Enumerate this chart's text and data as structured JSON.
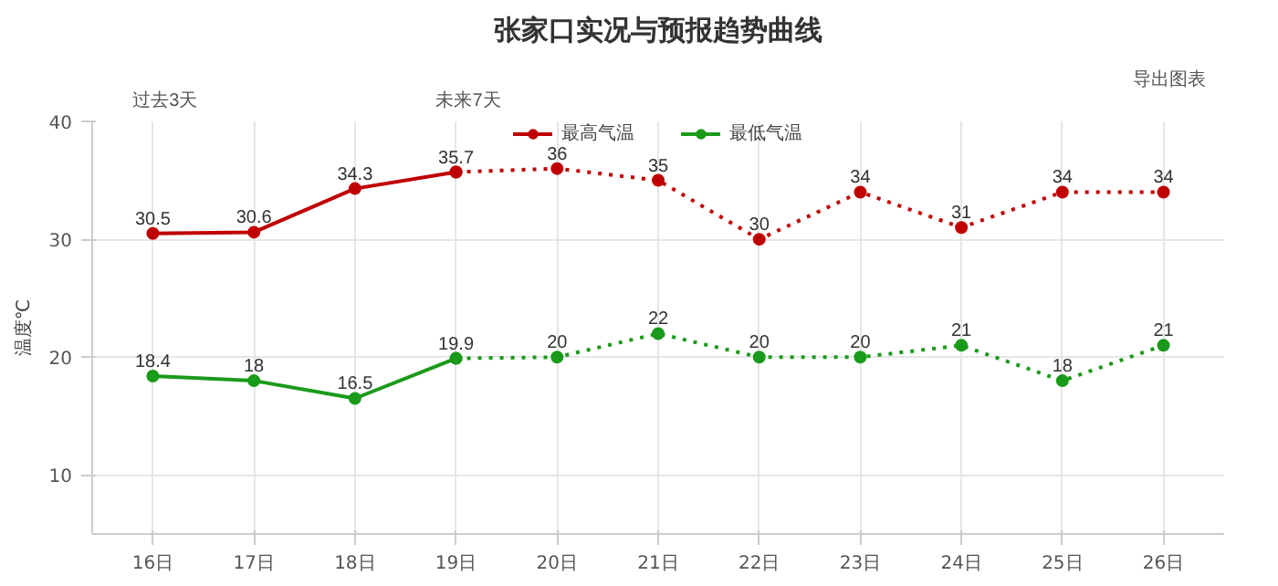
{
  "chart_data": {
    "type": "line",
    "title": "张家口实况与预报趋势曲线",
    "ylabel": "温度℃",
    "categories": [
      "16日",
      "17日",
      "18日",
      "19日",
      "20日",
      "21日",
      "22日",
      "23日",
      "24日",
      "25日",
      "26日"
    ],
    "series": [
      {
        "name": "最高气温",
        "color": "#c00000",
        "line_style": "solid",
        "values": [
          30.5,
          30.6,
          34.3,
          35.7,
          null,
          null,
          null,
          null,
          null,
          null,
          null
        ],
        "data_labels": true
      },
      {
        "color": "#c00000",
        "line_style": "dotted",
        "values": [
          null,
          null,
          null,
          35.7,
          36,
          35,
          30,
          34,
          31,
          34,
          34
        ],
        "value_labels": [
          null,
          null,
          null,
          null,
          "36",
          "35",
          "30",
          "34",
          "31",
          "34",
          "34"
        ]
      },
      {
        "name": "最低气温",
        "color": "#1a9a1a",
        "line_style": "solid",
        "values": [
          18.4,
          18,
          16.5,
          19.9,
          null,
          null,
          null,
          null,
          null,
          null,
          null
        ],
        "data_labels": true
      },
      {
        "color": "#1a9a1a",
        "line_style": "dotted",
        "values": [
          null,
          null,
          null,
          19.9,
          20,
          22,
          20,
          20,
          21,
          18,
          21
        ],
        "value_labels": [
          null,
          null,
          null,
          null,
          "20",
          "22",
          "20",
          "20",
          "21",
          "18",
          "21"
        ]
      }
    ],
    "ylim": [
      5,
      40
    ],
    "yticks": [
      10,
      20,
      30,
      40
    ],
    "grid": true,
    "legend": "top",
    "marker": "circle",
    "annotations": [
      "过去3天",
      "未来7天",
      "导出图表"
    ]
  }
}
